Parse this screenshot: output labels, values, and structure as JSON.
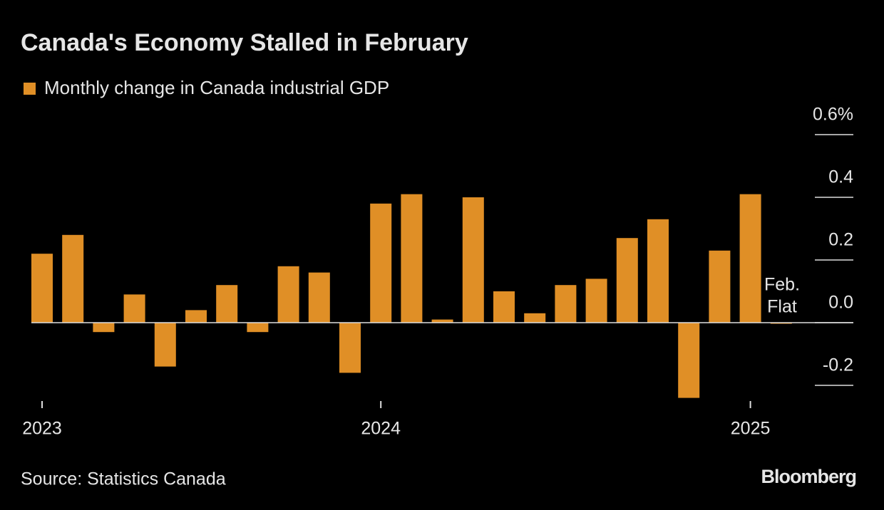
{
  "chart_data": {
    "type": "bar",
    "title": "Canada's Economy Stalled in February",
    "source": "Source: Statistics Canada",
    "brand": "Bloomberg",
    "annotation_lines": [
      "Feb.",
      "Flat"
    ],
    "series": [
      {
        "name": "Monthly change in Canada industrial GDP",
        "color": "#e08f26",
        "values": [
          0.22,
          0.28,
          -0.03,
          0.09,
          -0.14,
          0.04,
          0.12,
          -0.03,
          0.18,
          0.16,
          -0.16,
          0.38,
          0.41,
          0.01,
          0.4,
          0.1,
          0.03,
          0.12,
          0.14,
          0.27,
          0.33,
          -0.24,
          0.23,
          0.41,
          0.0
        ]
      }
    ],
    "categories": [
      "2023",
      null,
      null,
      null,
      null,
      null,
      null,
      null,
      null,
      null,
      null,
      "2024",
      null,
      null,
      null,
      null,
      null,
      null,
      null,
      null,
      null,
      null,
      null,
      "2025",
      null
    ],
    "ylim": [
      -0.2,
      0.6
    ],
    "yticks": [
      {
        "value": -0.2,
        "label": "-0.2"
      },
      {
        "value": 0,
        "label": "0.0"
      },
      0.2,
      0.4,
      {
        "value": 0.6,
        "label": "0.6%"
      }
    ]
  }
}
